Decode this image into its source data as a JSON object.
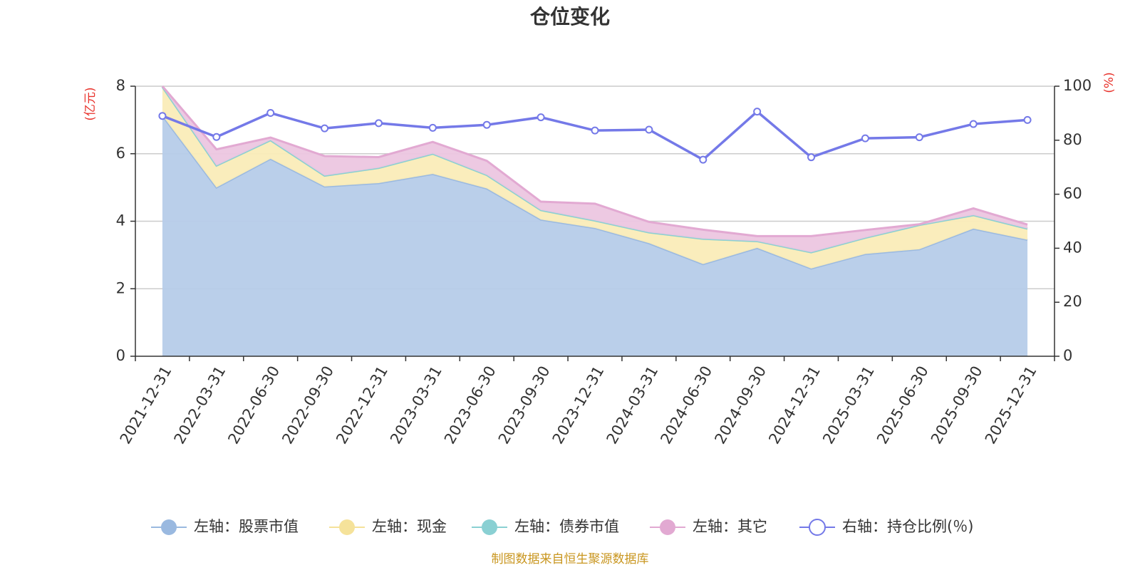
{
  "chart_data": {
    "type": "area",
    "title": "仓位变化",
    "source": "制图数据来自恒生聚源数据库",
    "y_left_unit": "(亿元)",
    "y_right_unit": "(%)",
    "ylim_left": [
      0,
      8
    ],
    "ylim_right": [
      0,
      100
    ],
    "y_left_ticks": [
      "0",
      "2",
      "4",
      "6",
      "8"
    ],
    "y_right_ticks": [
      "0",
      "20",
      "40",
      "60",
      "80",
      "100"
    ],
    "categories": [
      "2021-12-31",
      "2022-03-31",
      "2022-06-30",
      "2022-09-30",
      "2022-12-31",
      "2023-03-31",
      "2023-06-30",
      "2023-09-30",
      "2023-12-31",
      "2024-03-31",
      "2024-06-30",
      "2024-09-30",
      "2024-12-31",
      "2025-03-31",
      "2025-06-30",
      "2025-09-30",
      "2025-12-31"
    ],
    "series": [
      {
        "name": "左轴：股票市值",
        "axis": "left",
        "stacked": true,
        "color": "#9ab9e0",
        "fill": "#b6cce9",
        "values": [
          7.13,
          5.0,
          5.85,
          5.03,
          5.13,
          5.4,
          4.97,
          4.05,
          3.8,
          3.35,
          2.73,
          3.21,
          2.6,
          3.03,
          3.17,
          3.78,
          3.45
        ]
      },
      {
        "name": "左轴：现金",
        "axis": "left",
        "stacked": true,
        "color": "#f5e29a",
        "fill": "#faecb8",
        "values": [
          0.85,
          0.65,
          0.55,
          0.32,
          0.45,
          0.6,
          0.4,
          0.28,
          0.22,
          0.32,
          0.75,
          0.2,
          0.48,
          0.48,
          0.72,
          0.4,
          0.33
        ]
      },
      {
        "name": "左轴：债券市值",
        "axis": "left",
        "stacked": true,
        "color": "#8ad0d3",
        "fill": "#a6dcdf",
        "values": [
          0,
          0,
          0,
          0,
          0,
          0,
          0,
          0,
          0,
          0,
          0,
          0,
          0,
          0,
          0,
          0,
          0
        ]
      },
      {
        "name": "左轴：其它",
        "axis": "left",
        "stacked": true,
        "color": "#e2a9d2",
        "fill": "#ecc6e0",
        "values": [
          0.02,
          0.48,
          0.08,
          0.58,
          0.32,
          0.35,
          0.42,
          0.25,
          0.5,
          0.31,
          0.27,
          0.15,
          0.48,
          0.23,
          0.02,
          0.2,
          0.12
        ]
      },
      {
        "name": "右轴：持仓比例(％)",
        "axis": "right",
        "stacked": false,
        "color": "#7479e8",
        "values": [
          89.0,
          81.2,
          90.1,
          84.4,
          86.3,
          84.6,
          85.7,
          88.5,
          83.6,
          83.9,
          72.8,
          90.6,
          73.7,
          80.7,
          81.1,
          86.0,
          87.5
        ]
      }
    ]
  }
}
